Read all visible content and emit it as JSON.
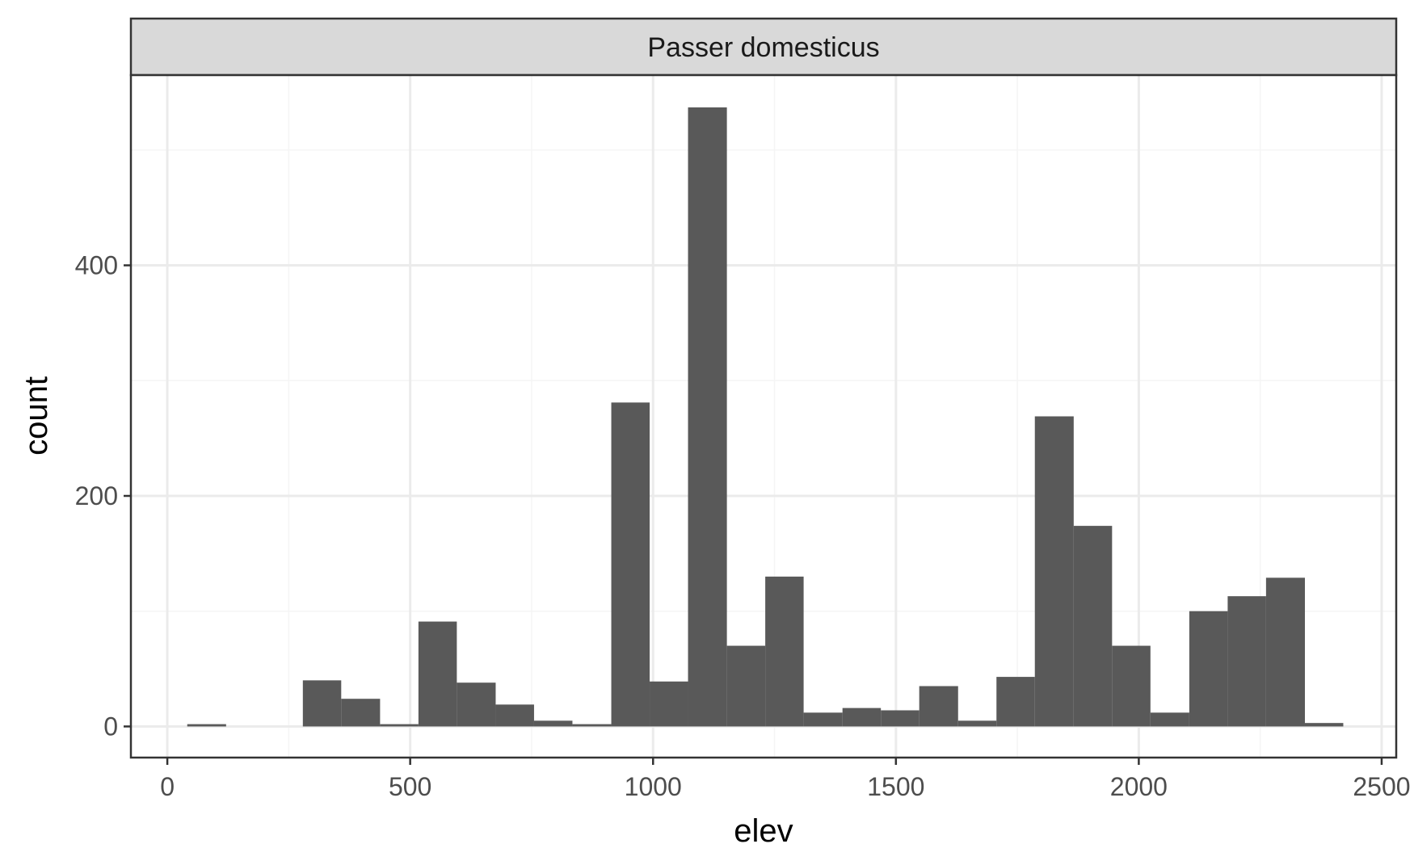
{
  "chart_data": {
    "type": "bar",
    "subtype": "histogram",
    "facet_label": "Passer domesticus",
    "xlabel": "elev",
    "ylabel": "count",
    "xlim": [
      -75,
      2530
    ],
    "ylim": [
      -27,
      565
    ],
    "x_ticks": [
      0,
      500,
      1000,
      1500,
      2000,
      2500
    ],
    "x_tick_labels": [
      "0",
      "500",
      "1000",
      "1500",
      "2000",
      "2500"
    ],
    "y_ticks": [
      0,
      200,
      400
    ],
    "y_tick_labels": [
      "0",
      "200",
      "400"
    ],
    "x_minor_ticks": [
      250,
      750,
      1250,
      1750,
      2250
    ],
    "y_minor_ticks": [
      100,
      300,
      500
    ],
    "grid": true,
    "bins": [
      {
        "x0": 41,
        "x1": 121,
        "count": 2
      },
      {
        "x0": 121,
        "x1": 200,
        "count": 0
      },
      {
        "x0": 200,
        "x1": 279,
        "count": 0
      },
      {
        "x0": 279,
        "x1": 358,
        "count": 40
      },
      {
        "x0": 358,
        "x1": 438,
        "count": 24
      },
      {
        "x0": 438,
        "x1": 517,
        "count": 2
      },
      {
        "x0": 517,
        "x1": 596,
        "count": 91
      },
      {
        "x0": 596,
        "x1": 676,
        "count": 38
      },
      {
        "x0": 676,
        "x1": 755,
        "count": 19
      },
      {
        "x0": 755,
        "x1": 834,
        "count": 5
      },
      {
        "x0": 834,
        "x1": 914,
        "count": 2
      },
      {
        "x0": 914,
        "x1": 993,
        "count": 281
      },
      {
        "x0": 993,
        "x1": 1072,
        "count": 39
      },
      {
        "x0": 1072,
        "x1": 1152,
        "count": 537
      },
      {
        "x0": 1152,
        "x1": 1231,
        "count": 70
      },
      {
        "x0": 1231,
        "x1": 1310,
        "count": 130
      },
      {
        "x0": 1310,
        "x1": 1390,
        "count": 12
      },
      {
        "x0": 1390,
        "x1": 1469,
        "count": 16
      },
      {
        "x0": 1469,
        "x1": 1548,
        "count": 14
      },
      {
        "x0": 1548,
        "x1": 1628,
        "count": 35
      },
      {
        "x0": 1628,
        "x1": 1707,
        "count": 5
      },
      {
        "x0": 1707,
        "x1": 1786,
        "count": 43
      },
      {
        "x0": 1786,
        "x1": 1866,
        "count": 269
      },
      {
        "x0": 1866,
        "x1": 1945,
        "count": 174
      },
      {
        "x0": 1945,
        "x1": 2024,
        "count": 70
      },
      {
        "x0": 2024,
        "x1": 2104,
        "count": 12
      },
      {
        "x0": 2104,
        "x1": 2183,
        "count": 100
      },
      {
        "x0": 2183,
        "x1": 2262,
        "count": 113
      },
      {
        "x0": 2262,
        "x1": 2342,
        "count": 129
      },
      {
        "x0": 2342,
        "x1": 2421,
        "count": 3
      }
    ],
    "colors": {
      "bar_fill": "#595959",
      "panel_background": "#ffffff",
      "grid_major": "#ebebeb",
      "grid_minor": "#f5f5f5",
      "panel_border": "#333333",
      "strip_background": "#d9d9d9",
      "strip_border": "#333333",
      "tick_label": "#4d4d4d",
      "axis_title": "#000000"
    }
  }
}
